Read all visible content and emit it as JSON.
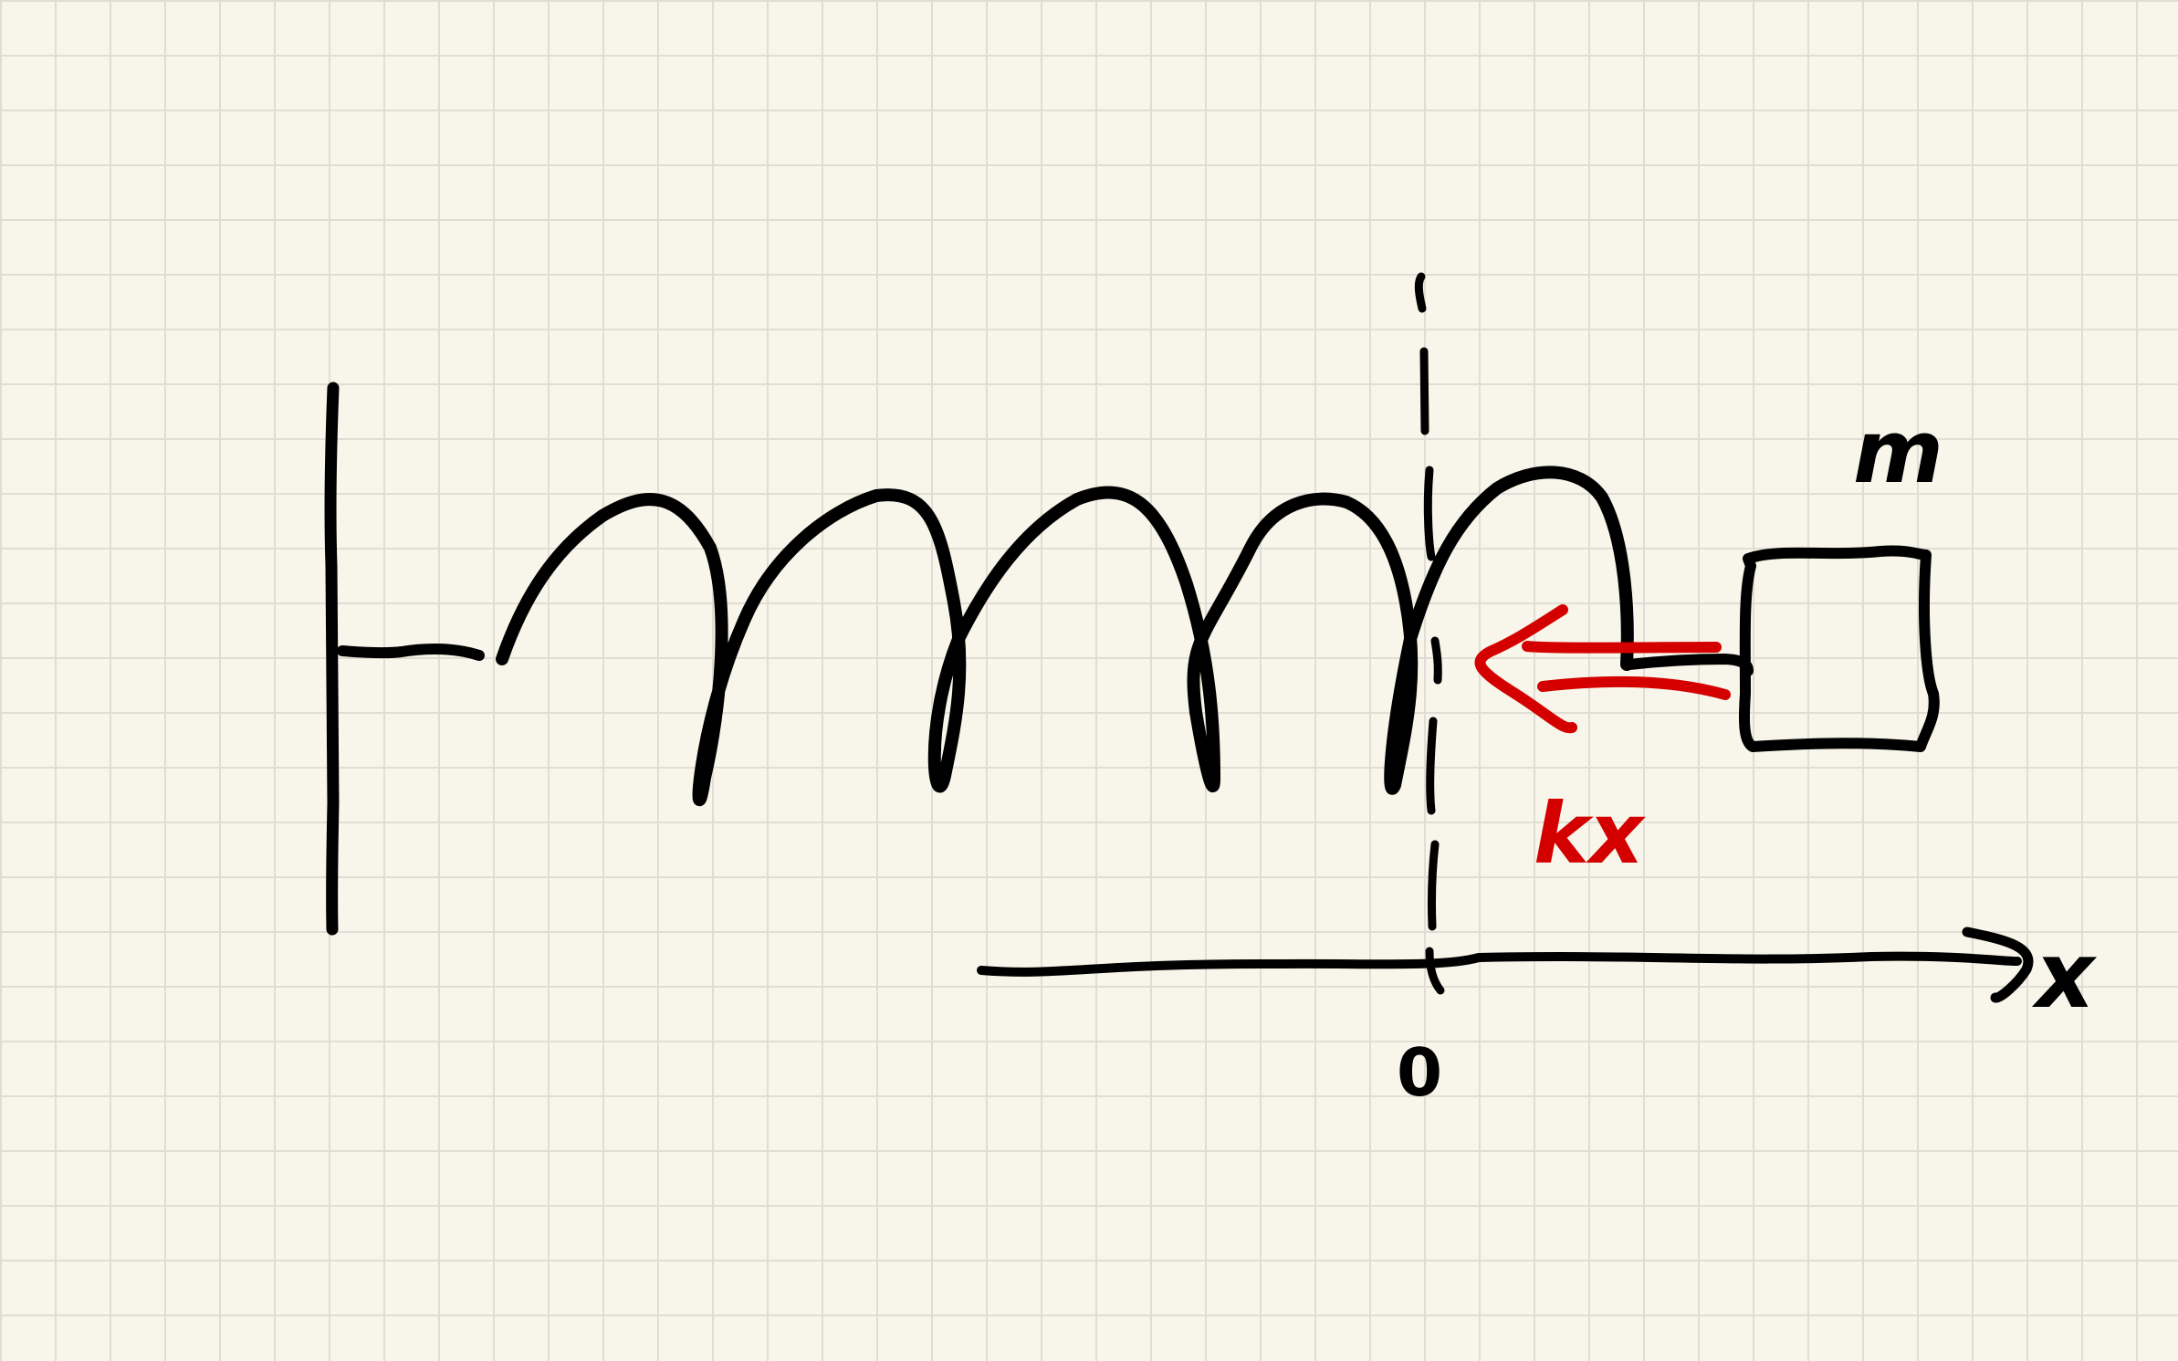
{
  "colors": {
    "paper": "#f8f6ea",
    "grid": "#e0ded4",
    "ink": "#000000",
    "force": "#d40000"
  },
  "labels": {
    "mass": "m",
    "force": "kx",
    "axis": "x",
    "origin": "0"
  }
}
